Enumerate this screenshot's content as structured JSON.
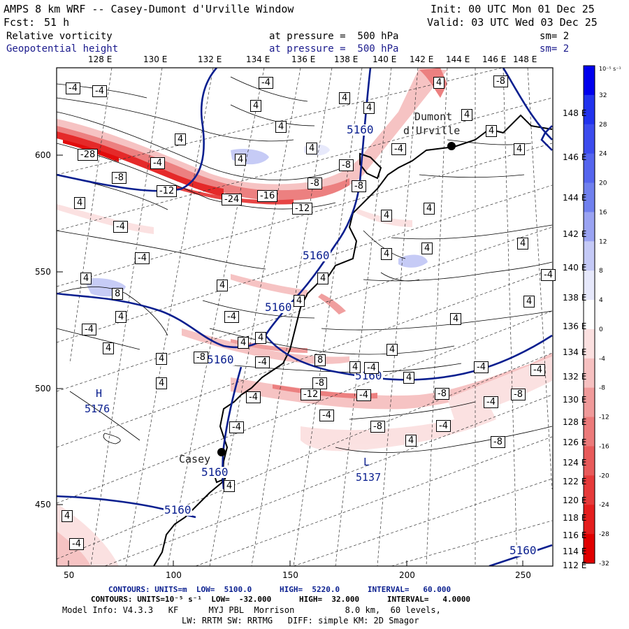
{
  "header": {
    "title": "AMPS 8 km WRF -- Casey-Dumont d'Urville Window",
    "init": "Init: 00 UTC Mon 01 Dec 25",
    "fcst_label": "Fcst:",
    "fcst_value": "51 h",
    "valid": "Valid: 03 UTC Wed 03 Dec 25",
    "field1": {
      "name": "Relative vorticity",
      "level": "at pressure =  500 hPa",
      "smooth": "sm= 2"
    },
    "field2": {
      "name": "Geopotential height",
      "level": "at pressure =  500 hPa",
      "smooth": "sm= 2"
    }
  },
  "top_lon_labels": [
    "128 E",
    "130 E",
    "132 E",
    "134 E",
    "136 E",
    "138 E",
    "140 E",
    "142 E",
    "144 E",
    "146 E",
    "148 E"
  ],
  "right_lon_labels": [
    "148 E",
    "146 E",
    "144 E",
    "142 E",
    "140 E",
    "138 E",
    "136 E",
    "134 E",
    "132 E",
    "130 E",
    "128 E",
    "126 E",
    "124 E",
    "122 E",
    "120 E",
    "118 E",
    "116 E",
    "114 E",
    "112 E"
  ],
  "left_axis": [
    "600",
    "550",
    "500",
    "450"
  ],
  "bottom_axis": [
    "50",
    "100",
    "150",
    "200",
    "250"
  ],
  "colorbar": {
    "unit": "10⁻⁵ s⁻¹",
    "ticks": [
      "32",
      "28",
      "24",
      "20",
      "16",
      "12",
      "8",
      "4",
      "0",
      "-4",
      "-8",
      "-12",
      "-16",
      "-20",
      "-24",
      "-28",
      "-32"
    ],
    "colors": [
      "#0000ee",
      "#2233ee",
      "#3c4cee",
      "#5565ee",
      "#7080ee",
      "#9aa3f2",
      "#c4c9f6",
      "#e6e8fb",
      "#ffffff",
      "#fbe0e0",
      "#f6c0c0",
      "#f09a9a",
      "#ec7a7a",
      "#e85a5a",
      "#e63a3a",
      "#e41e1e",
      "#e00000"
    ]
  },
  "places": [
    {
      "name": "Dumont d'Urville",
      "label1": "Dumont",
      "label2": "d'Urville"
    },
    {
      "name": "Casey",
      "label1": "Casey"
    }
  ],
  "highs_lows": [
    {
      "mark": "H",
      "value": "5176"
    },
    {
      "mark": "L",
      "value": "5137"
    }
  ],
  "height_labels": [
    "5160",
    "5160",
    "5160",
    "5160",
    "5160",
    "5160",
    "5160",
    "5160"
  ],
  "vort_labels": [
    "-4",
    "-4",
    "-4",
    "4",
    "4",
    "-8",
    "4",
    "4",
    "4",
    "4",
    "-28",
    "-4",
    "4",
    "-8",
    "-4",
    "-8",
    "-8",
    "4",
    "4",
    "-12",
    "-24",
    "-16",
    "-8",
    "-12",
    "4",
    "4",
    "4",
    "-4",
    "4",
    "8",
    "4",
    "4",
    "-4",
    "4",
    "4",
    "4",
    "-4",
    "4",
    "4",
    "-4",
    "4",
    "4",
    "-4",
    "4",
    "4",
    "4",
    "4",
    "4",
    "4",
    "4",
    "8",
    "4",
    "-4",
    "-8",
    "-4",
    "-8",
    "-4",
    "-4",
    "-4",
    "-4",
    "-12",
    "-8",
    "-4",
    "-8",
    "-4",
    "-4",
    "-8",
    "-4",
    "4",
    "-8",
    "4",
    "4",
    "-4",
    "4",
    "4"
  ],
  "footer": {
    "line1_a": "CONTOURS:",
    "line1_b": "UNITS=m  LOW=  5100.0      HIGH=  5220.0      INTERVAL=   60.000",
    "line2_a": "CONTOURS:",
    "line2_b": "UNITS=10⁻⁵ s⁻¹  LOW=  -32.000      HIGH=  32.000      INTERVAL=   4.0000",
    "line3": "Model Info: V4.3.3   KF      MYJ PBL  Morrison          8.0 km,  60 levels,",
    "line4": "LW: RRTM SW: RRTMG   DIFF: simple KM: 2D Smagor"
  }
}
